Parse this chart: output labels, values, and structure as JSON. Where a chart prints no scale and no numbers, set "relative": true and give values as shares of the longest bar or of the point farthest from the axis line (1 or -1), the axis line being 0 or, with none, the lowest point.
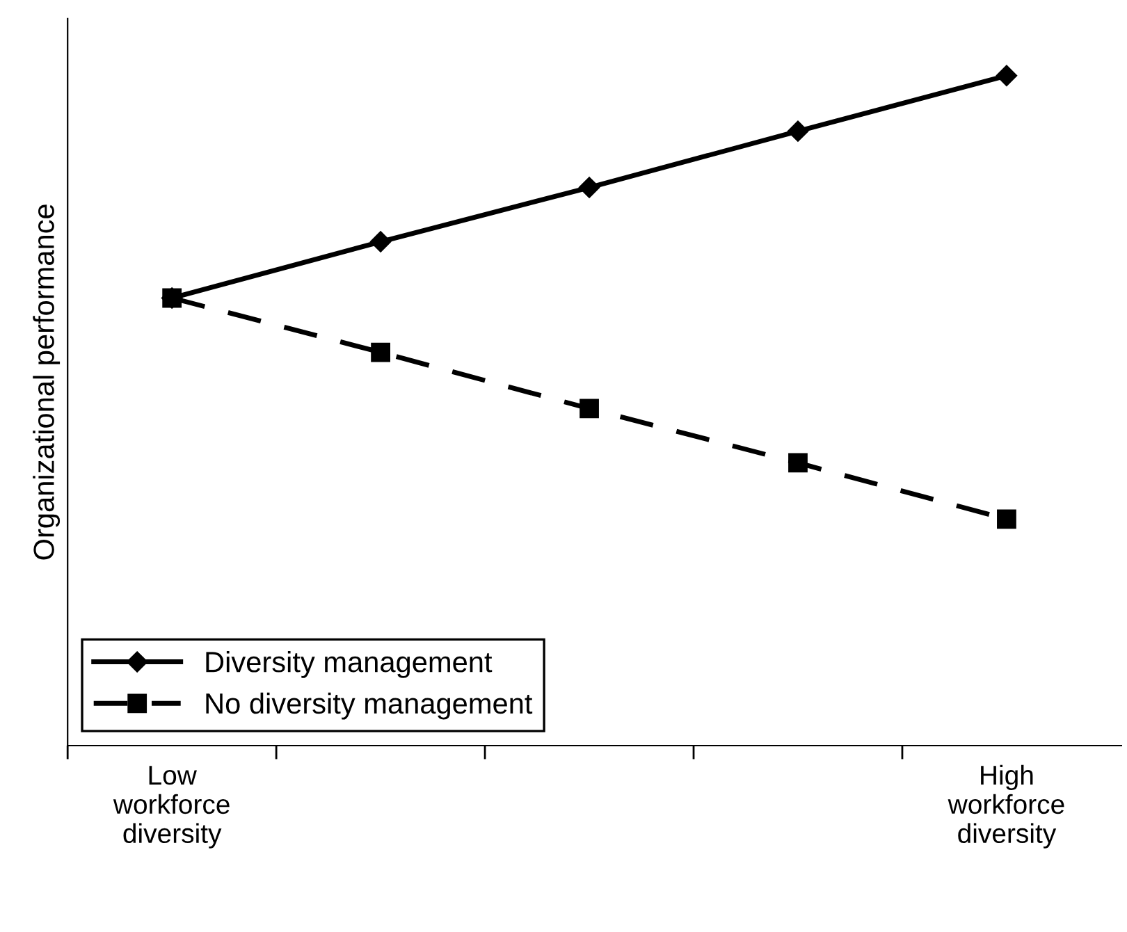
{
  "chart_data": {
    "type": "line",
    "relative": true,
    "ylabel": "Organizational performance",
    "categories": [
      "Low\nworkforce\ndiversity",
      null,
      null,
      null,
      "High\nworkforce\ndiversity"
    ],
    "series": [
      {
        "name": "Diversity management",
        "color": "#000000",
        "marker": "diamond",
        "line_style": "solid",
        "values": [
          0.668,
          0.752,
          0.833,
          0.917,
          1.0
        ]
      },
      {
        "name": "No diversity management",
        "color": "#000000",
        "marker": "square",
        "line_style": "dashed",
        "values": [
          0.668,
          0.587,
          0.503,
          0.422,
          0.338
        ]
      }
    ],
    "legend": "bottom left",
    "grid": false
  }
}
